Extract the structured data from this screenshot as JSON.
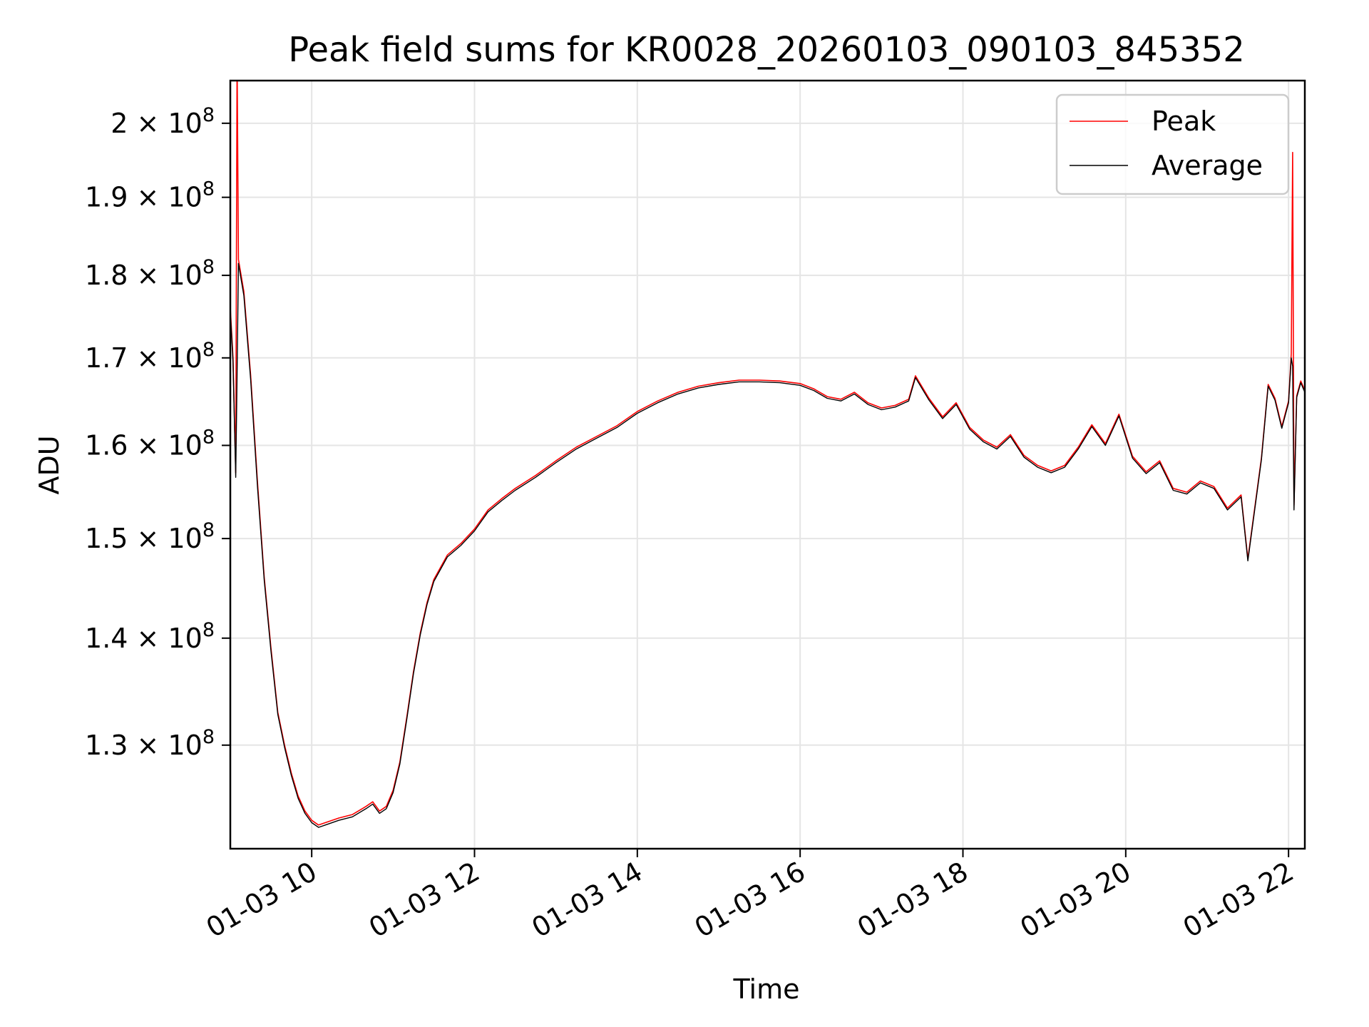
{
  "chart_data": {
    "type": "line",
    "title": "Peak field sums for KR0028_20260103_090103_845352",
    "xlabel": "Time",
    "ylabel": "ADU",
    "x_scale": "time",
    "y_scale": "log",
    "xlim": [
      "01-03 09:00",
      "01-03 22:12"
    ],
    "ylim": [
      121000000,
      206000000
    ],
    "grid": true,
    "legend_position": "top-right",
    "x_ticks": [
      {
        "x": "01-03 10:00",
        "label": "01-03 10"
      },
      {
        "x": "01-03 12:00",
        "label": "01-03 12"
      },
      {
        "x": "01-03 14:00",
        "label": "01-03 14"
      },
      {
        "x": "01-03 16:00",
        "label": "01-03 16"
      },
      {
        "x": "01-03 18:00",
        "label": "01-03 18"
      },
      {
        "x": "01-03 20:00",
        "label": "01-03 20"
      },
      {
        "x": "01-03 22:00",
        "label": "01-03 22"
      }
    ],
    "y_ticks": [
      {
        "y": 130000000,
        "mantissa": "1.3",
        "exponent": "8"
      },
      {
        "y": 140000000,
        "mantissa": "1.4",
        "exponent": "8"
      },
      {
        "y": 150000000,
        "mantissa": "1.5",
        "exponent": "8"
      },
      {
        "y": 160000000,
        "mantissa": "1.6",
        "exponent": "8"
      },
      {
        "y": 170000000,
        "mantissa": "1.7",
        "exponent": "8"
      },
      {
        "y": 180000000,
        "mantissa": "1.8",
        "exponent": "8"
      },
      {
        "y": 190000000,
        "mantissa": "1.9",
        "exponent": "8"
      },
      {
        "y": 200000000,
        "mantissa": "2",
        "exponent": "8"
      }
    ],
    "series": [
      {
        "name": "Peak",
        "color": "#ff0000",
        "points": [
          [
            "01-03 09:00",
            176000000
          ],
          [
            "01-03 09:02",
            170000000
          ],
          [
            "01-03 09:04",
            157000000
          ],
          [
            "01-03 09:05",
            210000000
          ],
          [
            "01-03 09:06",
            182000000
          ],
          [
            "01-03 09:10",
            178000000
          ],
          [
            "01-03 09:15",
            168000000
          ],
          [
            "01-03 09:20",
            156000000
          ],
          [
            "01-03 09:25",
            146000000
          ],
          [
            "01-03 09:30",
            139000000
          ],
          [
            "01-03 09:35",
            133000000
          ],
          [
            "01-03 09:40",
            130000000
          ],
          [
            "01-03 09:45",
            127500000
          ],
          [
            "01-03 09:50",
            125500000
          ],
          [
            "01-03 09:55",
            124200000
          ],
          [
            "01-03 10:00",
            123400000
          ],
          [
            "01-03 10:05",
            123000000
          ],
          [
            "01-03 10:10",
            123200000
          ],
          [
            "01-03 10:20",
            123600000
          ],
          [
            "01-03 10:30",
            123900000
          ],
          [
            "01-03 10:40",
            124600000
          ],
          [
            "01-03 10:45",
            125000000
          ],
          [
            "01-03 10:50",
            124200000
          ],
          [
            "01-03 10:55",
            124600000
          ],
          [
            "01-03 11:00",
            126000000
          ],
          [
            "01-03 11:05",
            128500000
          ],
          [
            "01-03 11:10",
            132500000
          ],
          [
            "01-03 11:15",
            136800000
          ],
          [
            "01-03 11:20",
            140500000
          ],
          [
            "01-03 11:25",
            143500000
          ],
          [
            "01-03 11:30",
            145800000
          ],
          [
            "01-03 11:40",
            148300000
          ],
          [
            "01-03 11:50",
            149500000
          ],
          [
            "01-03 12:00",
            151000000
          ],
          [
            "01-03 12:05",
            152000000
          ],
          [
            "01-03 12:10",
            153000000
          ],
          [
            "01-03 12:20",
            154200000
          ],
          [
            "01-03 12:30",
            155300000
          ],
          [
            "01-03 12:45",
            156700000
          ],
          [
            "01-03 13:00",
            158300000
          ],
          [
            "01-03 13:15",
            159800000
          ],
          [
            "01-03 13:30",
            161000000
          ],
          [
            "01-03 13:45",
            162200000
          ],
          [
            "01-03 14:00",
            163800000
          ],
          [
            "01-03 14:15",
            165000000
          ],
          [
            "01-03 14:30",
            166000000
          ],
          [
            "01-03 14:45",
            166700000
          ],
          [
            "01-03 15:00",
            167100000
          ],
          [
            "01-03 15:15",
            167400000
          ],
          [
            "01-03 15:30",
            167400000
          ],
          [
            "01-03 15:45",
            167300000
          ],
          [
            "01-03 16:00",
            167000000
          ],
          [
            "01-03 16:10",
            166400000
          ],
          [
            "01-03 16:20",
            165500000
          ],
          [
            "01-03 16:30",
            165200000
          ],
          [
            "01-03 16:40",
            166000000
          ],
          [
            "01-03 16:50",
            164800000
          ],
          [
            "01-03 17:00",
            164200000
          ],
          [
            "01-03 17:10",
            164500000
          ],
          [
            "01-03 17:20",
            165200000
          ],
          [
            "01-03 17:25",
            167900000
          ],
          [
            "01-03 17:35",
            165300000
          ],
          [
            "01-03 17:45",
            163200000
          ],
          [
            "01-03 17:55",
            164800000
          ],
          [
            "01-03 18:05",
            162000000
          ],
          [
            "01-03 18:15",
            160600000
          ],
          [
            "01-03 18:25",
            159800000
          ],
          [
            "01-03 18:35",
            161200000
          ],
          [
            "01-03 18:45",
            158900000
          ],
          [
            "01-03 18:55",
            157800000
          ],
          [
            "01-03 19:05",
            157200000
          ],
          [
            "01-03 19:15",
            157800000
          ],
          [
            "01-03 19:25",
            159800000
          ],
          [
            "01-03 19:35",
            162300000
          ],
          [
            "01-03 19:45",
            160200000
          ],
          [
            "01-03 19:55",
            163500000
          ],
          [
            "01-03 20:05",
            158800000
          ],
          [
            "01-03 20:15",
            157100000
          ],
          [
            "01-03 20:25",
            158300000
          ],
          [
            "01-03 20:35",
            155300000
          ],
          [
            "01-03 20:45",
            154900000
          ],
          [
            "01-03 20:55",
            156100000
          ],
          [
            "01-03 21:05",
            155500000
          ],
          [
            "01-03 21:15",
            153200000
          ],
          [
            "01-03 21:25",
            154600000
          ],
          [
            "01-03 21:30",
            147900000
          ],
          [
            "01-03 21:40",
            158600000
          ],
          [
            "01-03 21:45",
            166900000
          ],
          [
            "01-03 21:50",
            165300000
          ],
          [
            "01-03 21:55",
            162100000
          ],
          [
            "01-03 22:00",
            165000000
          ],
          [
            "01-03 22:02",
            170500000
          ],
          [
            "01-03 22:03",
            196000000
          ],
          [
            "01-03 22:04",
            153500000
          ],
          [
            "01-03 22:06",
            165600000
          ],
          [
            "01-03 22:09",
            167300000
          ],
          [
            "01-03 22:12",
            166200000
          ]
        ]
      },
      {
        "name": "Average",
        "color": "#000000",
        "points": [
          [
            "01-03 09:00",
            175500000
          ],
          [
            "01-03 09:02",
            169500000
          ],
          [
            "01-03 09:04",
            156500000
          ],
          [
            "01-03 09:05",
            168000000
          ],
          [
            "01-03 09:06",
            181500000
          ],
          [
            "01-03 09:10",
            177500000
          ],
          [
            "01-03 09:15",
            167500000
          ],
          [
            "01-03 09:20",
            155500000
          ],
          [
            "01-03 09:25",
            145700000
          ],
          [
            "01-03 09:30",
            138700000
          ],
          [
            "01-03 09:35",
            132800000
          ],
          [
            "01-03 09:40",
            129800000
          ],
          [
            "01-03 09:45",
            127300000
          ],
          [
            "01-03 09:50",
            125300000
          ],
          [
            "01-03 09:55",
            124000000
          ],
          [
            "01-03 10:00",
            123200000
          ],
          [
            "01-03 10:05",
            122800000
          ],
          [
            "01-03 10:10",
            123000000
          ],
          [
            "01-03 10:20",
            123400000
          ],
          [
            "01-03 10:30",
            123700000
          ],
          [
            "01-03 10:40",
            124400000
          ],
          [
            "01-03 10:45",
            124800000
          ],
          [
            "01-03 10:50",
            124000000
          ],
          [
            "01-03 10:55",
            124400000
          ],
          [
            "01-03 11:00",
            125800000
          ],
          [
            "01-03 11:05",
            128300000
          ],
          [
            "01-03 11:10",
            132300000
          ],
          [
            "01-03 11:15",
            136600000
          ],
          [
            "01-03 11:20",
            140300000
          ],
          [
            "01-03 11:25",
            143300000
          ],
          [
            "01-03 11:30",
            145600000
          ],
          [
            "01-03 11:40",
            148100000
          ],
          [
            "01-03 11:50",
            149300000
          ],
          [
            "01-03 12:00",
            150800000
          ],
          [
            "01-03 12:05",
            151800000
          ],
          [
            "01-03 12:10",
            152800000
          ],
          [
            "01-03 12:20",
            154000000
          ],
          [
            "01-03 12:30",
            155100000
          ],
          [
            "01-03 12:45",
            156500000
          ],
          [
            "01-03 13:00",
            158100000
          ],
          [
            "01-03 13:15",
            159600000
          ],
          [
            "01-03 13:30",
            160800000
          ],
          [
            "01-03 13:45",
            162000000
          ],
          [
            "01-03 14:00",
            163600000
          ],
          [
            "01-03 14:15",
            164800000
          ],
          [
            "01-03 14:30",
            165800000
          ],
          [
            "01-03 14:45",
            166500000
          ],
          [
            "01-03 15:00",
            166900000
          ],
          [
            "01-03 15:15",
            167200000
          ],
          [
            "01-03 15:30",
            167200000
          ],
          [
            "01-03 15:45",
            167100000
          ],
          [
            "01-03 16:00",
            166800000
          ],
          [
            "01-03 16:10",
            166200000
          ],
          [
            "01-03 16:20",
            165300000
          ],
          [
            "01-03 16:30",
            165000000
          ],
          [
            "01-03 16:40",
            165800000
          ],
          [
            "01-03 16:50",
            164600000
          ],
          [
            "01-03 17:00",
            164000000
          ],
          [
            "01-03 17:10",
            164300000
          ],
          [
            "01-03 17:20",
            165000000
          ],
          [
            "01-03 17:25",
            167700000
          ],
          [
            "01-03 17:35",
            165100000
          ],
          [
            "01-03 17:45",
            163000000
          ],
          [
            "01-03 17:55",
            164600000
          ],
          [
            "01-03 18:05",
            161800000
          ],
          [
            "01-03 18:15",
            160400000
          ],
          [
            "01-03 18:25",
            159600000
          ],
          [
            "01-03 18:35",
            161000000
          ],
          [
            "01-03 18:45",
            158700000
          ],
          [
            "01-03 18:55",
            157600000
          ],
          [
            "01-03 19:05",
            157000000
          ],
          [
            "01-03 19:15",
            157600000
          ],
          [
            "01-03 19:25",
            159600000
          ],
          [
            "01-03 19:35",
            162100000
          ],
          [
            "01-03 19:45",
            160000000
          ],
          [
            "01-03 19:55",
            163300000
          ],
          [
            "01-03 20:05",
            158600000
          ],
          [
            "01-03 20:15",
            156900000
          ],
          [
            "01-03 20:25",
            158100000
          ],
          [
            "01-03 20:35",
            155100000
          ],
          [
            "01-03 20:45",
            154700000
          ],
          [
            "01-03 20:55",
            155900000
          ],
          [
            "01-03 21:05",
            155300000
          ],
          [
            "01-03 21:15",
            153000000
          ],
          [
            "01-03 21:25",
            154400000
          ],
          [
            "01-03 21:30",
            147700000
          ],
          [
            "01-03 21:40",
            158400000
          ],
          [
            "01-03 21:45",
            166700000
          ],
          [
            "01-03 21:50",
            165100000
          ],
          [
            "01-03 21:55",
            161900000
          ],
          [
            "01-03 22:00",
            164800000
          ],
          [
            "01-03 22:02",
            170000000
          ],
          [
            "01-03 22:03",
            169000000
          ],
          [
            "01-03 22:04",
            153000000
          ],
          [
            "01-03 22:06",
            165400000
          ],
          [
            "01-03 22:09",
            167100000
          ],
          [
            "01-03 22:12",
            166000000
          ]
        ]
      }
    ]
  }
}
